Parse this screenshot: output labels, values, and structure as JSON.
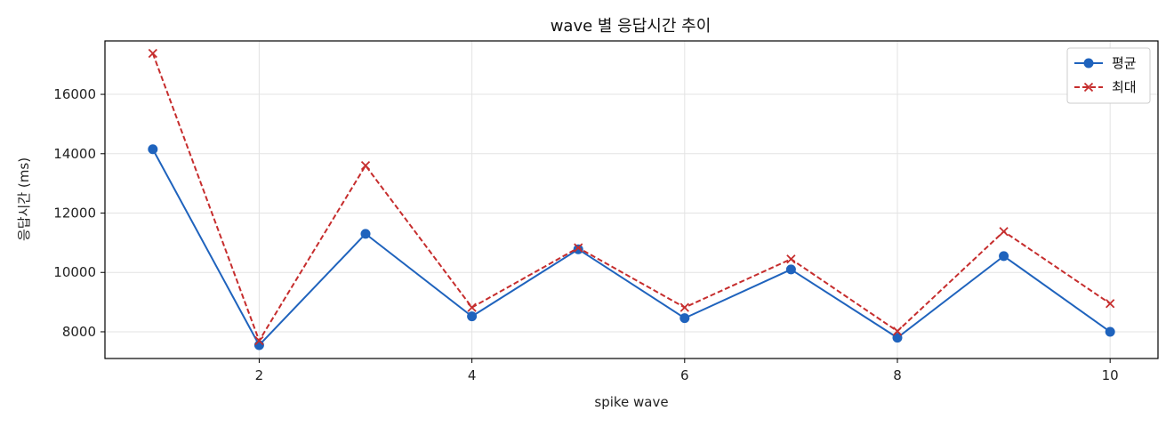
{
  "chart_data": {
    "type": "line",
    "title": "wave 별 응답시간 추이",
    "xlabel": "spike wave",
    "ylabel": "응답시간 (ms)",
    "x": [
      1,
      2,
      3,
      4,
      5,
      6,
      7,
      8,
      9,
      10
    ],
    "xticks": [
      2,
      4,
      6,
      8,
      10
    ],
    "yticks": [
      8000,
      10000,
      12000,
      14000,
      16000
    ],
    "xlim": [
      0.55,
      10.45
    ],
    "ylim": [
      7100,
      17800
    ],
    "grid": true,
    "legend_position": "top-right",
    "series": [
      {
        "name": "평균",
        "color": "#1f63bd",
        "marker": "circle",
        "linestyle": "solid",
        "values": [
          14150,
          7550,
          11300,
          8520,
          10780,
          8460,
          10100,
          7800,
          10550,
          8000
        ]
      },
      {
        "name": "최대",
        "color": "#c62d2d",
        "marker": "x",
        "linestyle": "dashed",
        "values": [
          17380,
          7700,
          13600,
          8820,
          10830,
          8820,
          10450,
          8020,
          11380,
          8950
        ]
      }
    ]
  }
}
